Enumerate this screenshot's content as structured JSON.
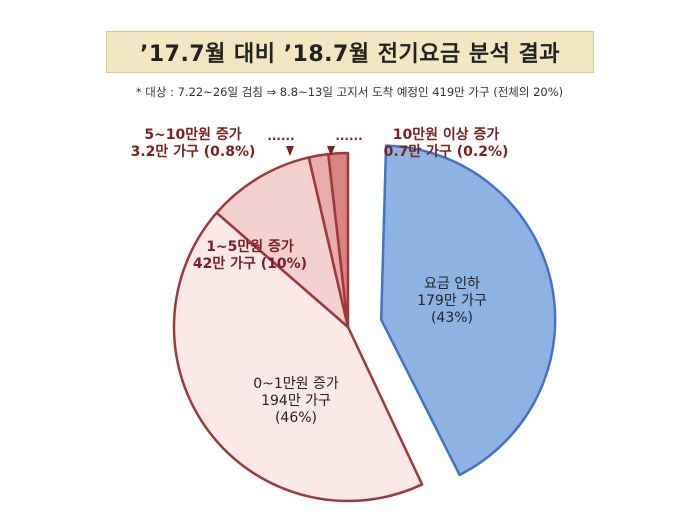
{
  "title": "’17.7월 대비 ’18.7월 전기요금 분석 결과",
  "note": "* 대상 : 7.22~26일 검침 ⇒ 8.8~13일 고지서 도착 예정인 419만 가구 (전체의 20%)",
  "chart_data": {
    "type": "pie",
    "slices": [
      {
        "label": "요금 인하",
        "value_text": "179만 가구",
        "pct_text": "(43%)",
        "households": 179,
        "percent": 43,
        "color": "#8eb3e3",
        "stroke": "#4472c4",
        "exploded": true
      },
      {
        "label": "0~1만원 증가",
        "value_text": "194만 가구",
        "pct_text": "(46%)",
        "households": 194,
        "percent": 46,
        "color": "#fbe9e8",
        "stroke": "#a0373b",
        "exploded": false
      },
      {
        "label": "1~5만원 증가",
        "value_text": "42만 가구 (10%)",
        "households": 42,
        "percent": 10,
        "color": "#f3d1d0",
        "stroke": "#a0373b",
        "exploded": false
      },
      {
        "label": "5~10만원 증가",
        "value_text": "3.2만 가구 (0.8%)",
        "households": 3.2,
        "percent": 0.8,
        "color": "#e7adac",
        "stroke": "#a0373b",
        "exploded": false
      },
      {
        "label": "10만원 이상 증가",
        "value_text": "0.7만 가구 (0.2%)",
        "households": 0.7,
        "percent": 0.2,
        "color": "#d98382",
        "stroke": "#a0373b",
        "exploded": false
      }
    ],
    "leader_marker": "......",
    "label_color": "#7b1f22",
    "inner_label_color": "#222222"
  }
}
